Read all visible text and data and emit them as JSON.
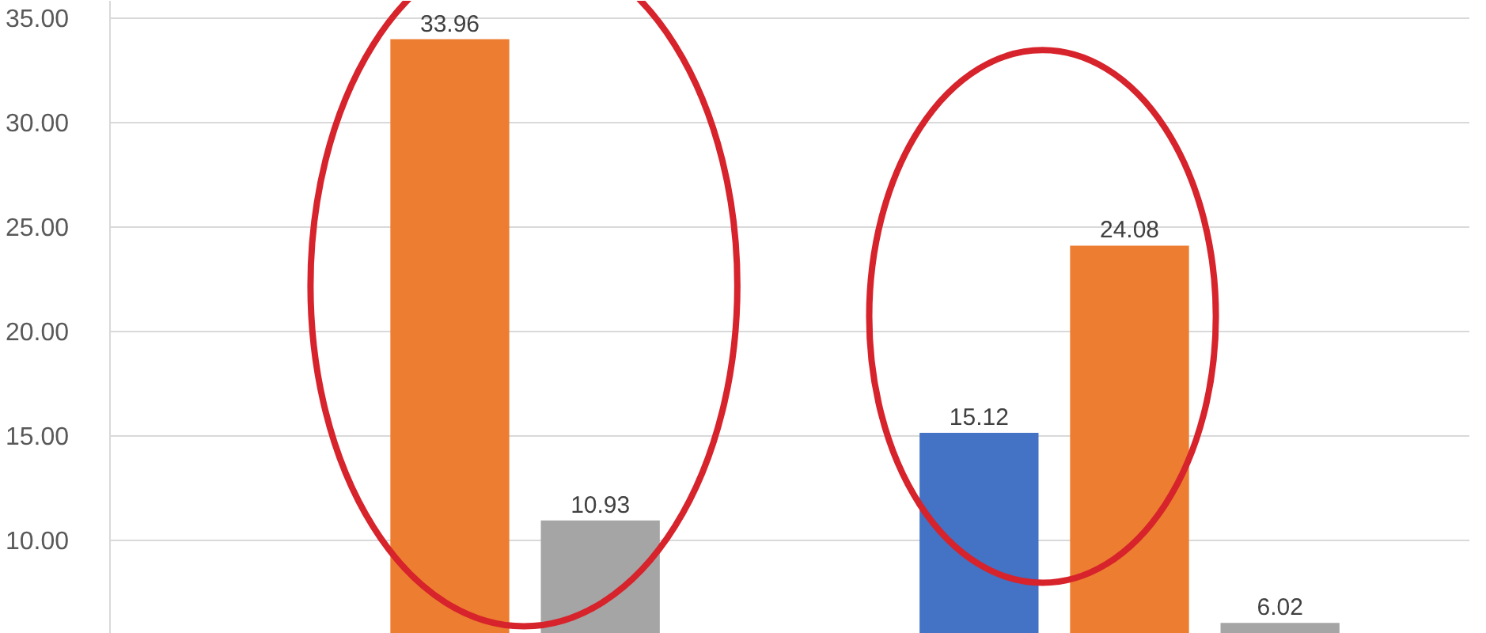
{
  "chart_data": {
    "type": "bar",
    "categories": [
      null,
      null
    ],
    "series": [
      {
        "color": "#4472c4",
        "values": [
          null,
          15.12
        ]
      },
      {
        "color": "#ed7d31",
        "values": [
          33.96,
          24.08
        ]
      },
      {
        "color": "#a5a5a5",
        "values": [
          10.93,
          6.02
        ]
      }
    ],
    "ylim": [
      5.5,
      35.8
    ],
    "yticks": [
      {
        "value": 10,
        "label": "10.00"
      },
      {
        "value": 15,
        "label": "15.00"
      },
      {
        "value": 20,
        "label": "20.00"
      },
      {
        "value": 25,
        "label": "25.00"
      },
      {
        "value": 30,
        "label": "30.00"
      },
      {
        "value": 35,
        "label": "35.00"
      }
    ],
    "grid": "y",
    "data_labels": true,
    "tick_labels": "y"
  }
}
